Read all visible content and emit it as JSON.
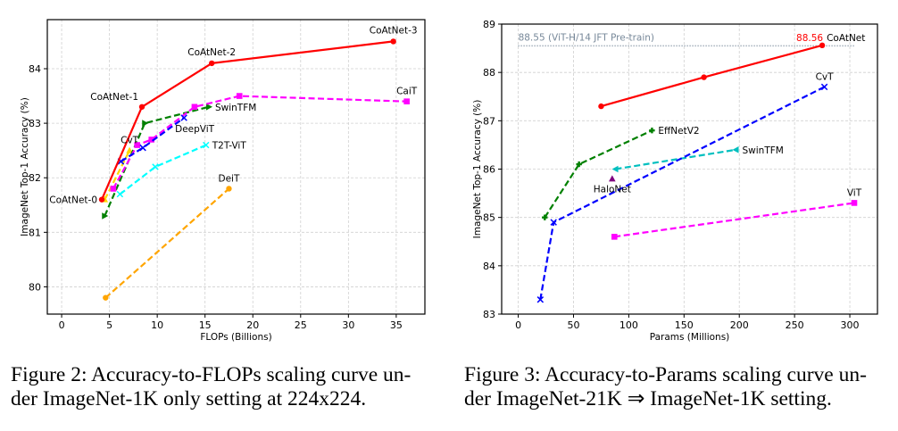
{
  "captions": {
    "left": {
      "line1": "Figure 2: Accuracy-to-FLOPs scaling curve un-",
      "line2": "der ImageNet-1K only setting at 224x224."
    },
    "right": {
      "line1": "Figure 3: Accuracy-to-Params scaling curve un-",
      "line2": "der ImageNet-21K ⇒ ImageNet-1K setting."
    }
  },
  "chart_data": [
    {
      "id": "flops",
      "type": "line",
      "title": "",
      "xlabel": "FLOPs (Billions)",
      "ylabel": "ImageNet Top-1 Accuracy (%)",
      "xlim": [
        -1.5,
        38
      ],
      "ylim": [
        79.5,
        84.9
      ],
      "xticks": [
        0,
        5,
        10,
        15,
        20,
        25,
        30,
        35
      ],
      "yticks": [
        80,
        81,
        82,
        83,
        84
      ],
      "grid": true,
      "legend": "none (inline labels)",
      "series": [
        {
          "name": "DeiT",
          "color": "#ffa500",
          "dash": true,
          "marker": "circle",
          "points": [
            [
              4.6,
              79.8
            ],
            [
              17.5,
              81.8
            ]
          ],
          "label": {
            "text": "DeiT",
            "at": [
              17.5,
              81.8
            ],
            "anchor": "above"
          }
        },
        {
          "name": "T2T-ViT",
          "color": "#00ffff",
          "dash": true,
          "marker": "x",
          "points": [
            [
              6.1,
              81.7
            ],
            [
              9.8,
              82.2
            ],
            [
              15.1,
              82.6
            ]
          ],
          "label": {
            "text": "T2T-ViT",
            "at": [
              15.1,
              82.6
            ],
            "anchor": "right"
          }
        },
        {
          "name": "CvT",
          "color": "#ffd700",
          "dash": true,
          "marker": "triangle-up",
          "points": [
            [
              4.5,
              81.6
            ],
            [
              7.1,
              82.5
            ]
          ],
          "label": {
            "text": "CvT",
            "at": [
              7.1,
              82.5
            ],
            "anchor": "above"
          }
        },
        {
          "name": "SwinTFM",
          "color": "#008000",
          "dash": true,
          "marker": "triangle-right",
          "points": [
            [
              4.5,
              81.3
            ],
            [
              8.7,
              83.0
            ],
            [
              15.4,
              83.3
            ]
          ],
          "label": {
            "text": "SwinTFM",
            "at": [
              15.4,
              83.3
            ],
            "anchor": "right"
          }
        },
        {
          "name": "CaiT",
          "color": "#ff00ff",
          "dash": true,
          "marker": "square",
          "points": [
            [
              5.4,
              81.8
            ],
            [
              7.9,
              82.6
            ],
            [
              9.4,
              82.7
            ],
            [
              13.9,
              83.3
            ],
            [
              18.6,
              83.5
            ],
            [
              36.1,
              83.4
            ]
          ],
          "label": {
            "text": "CaiT",
            "at": [
              36.1,
              83.4
            ],
            "anchor": "above"
          }
        },
        {
          "name": "DeepViT",
          "color": "#0000ff",
          "dash": true,
          "marker": "x",
          "points": [
            [
              6.2,
              82.3
            ],
            [
              8.5,
              82.55
            ],
            [
              12.8,
              83.1
            ]
          ],
          "label": {
            "text": "DeepViT",
            "at": [
              12.8,
              83.1
            ],
            "anchor": "below-right"
          }
        },
        {
          "name": "CoAtNet",
          "color": "#ff0000",
          "dash": false,
          "marker": "circle",
          "points": [
            [
              4.2,
              81.6
            ],
            [
              8.4,
              83.3
            ],
            [
              15.7,
              84.1
            ],
            [
              34.7,
              84.5
            ]
          ],
          "point_labels": [
            "CoAtNet-0",
            "CoAtNet-1",
            "CoAtNet-2",
            "CoAtNet-3"
          ]
        }
      ]
    },
    {
      "id": "params",
      "type": "line",
      "title": "",
      "xlabel": "Params (Millions)",
      "ylabel": "ImageNet Top-1 Accuracy (%)",
      "xlim": [
        -15,
        325
      ],
      "ylim": [
        83,
        89
      ],
      "xticks": [
        0,
        50,
        100,
        150,
        200,
        250,
        300
      ],
      "yticks": [
        83,
        84,
        85,
        86,
        87,
        88,
        89
      ],
      "grid": true,
      "legend": "none (inline labels)",
      "reference_line": {
        "value": 88.55,
        "text": "88.55 (ViT-H/14 JFT Pre-train)",
        "color": "#778899"
      },
      "highlight": {
        "text": "88.56",
        "color": "#ff0000"
      },
      "series": [
        {
          "name": "ViT",
          "color": "#ff00ff",
          "dash": true,
          "marker": "square",
          "points": [
            [
              87,
              84.6
            ],
            [
              304,
              85.3
            ]
          ],
          "label": {
            "text": "ViT",
            "at": [
              304,
              85.3
            ],
            "anchor": "above"
          }
        },
        {
          "name": "SwinTFM",
          "color": "#00bfbf",
          "dash": true,
          "marker": "triangle-left",
          "points": [
            [
              88,
              86.0
            ],
            [
              197,
              86.4
            ]
          ],
          "label": {
            "text": "SwinTFM",
            "at": [
              197,
              86.4
            ],
            "anchor": "right"
          }
        },
        {
          "name": "HaloNet",
          "color": "#800080",
          "dash": false,
          "marker": "triangle-up",
          "points": [
            [
              85,
              85.8
            ]
          ],
          "label": {
            "text": "HaloNet",
            "at": [
              85,
              85.8
            ],
            "anchor": "below"
          }
        },
        {
          "name": "EffNetV2",
          "color": "#008000",
          "dash": true,
          "marker": "plus",
          "points": [
            [
              24,
              85.0
            ],
            [
              55,
              86.1
            ],
            [
              121,
              86.8
            ]
          ],
          "label": {
            "text": "EffNetV2",
            "at": [
              121,
              86.8
            ],
            "anchor": "right"
          }
        },
        {
          "name": "CvT",
          "color": "#0000ff",
          "dash": true,
          "marker": "x",
          "points": [
            [
              20,
              83.3
            ],
            [
              32,
              84.9
            ],
            [
              277,
              87.7
            ]
          ],
          "label": {
            "text": "CvT",
            "at": [
              277,
              87.7
            ],
            "anchor": "above"
          }
        },
        {
          "name": "CoAtNet",
          "color": "#ff0000",
          "dash": false,
          "marker": "circle",
          "points": [
            [
              75,
              87.3
            ],
            [
              168,
              87.9
            ],
            [
              275,
              88.56
            ]
          ],
          "label": {
            "text": "CoAtNet",
            "at": [
              275,
              88.56
            ],
            "anchor": "above-right"
          }
        }
      ]
    }
  ]
}
